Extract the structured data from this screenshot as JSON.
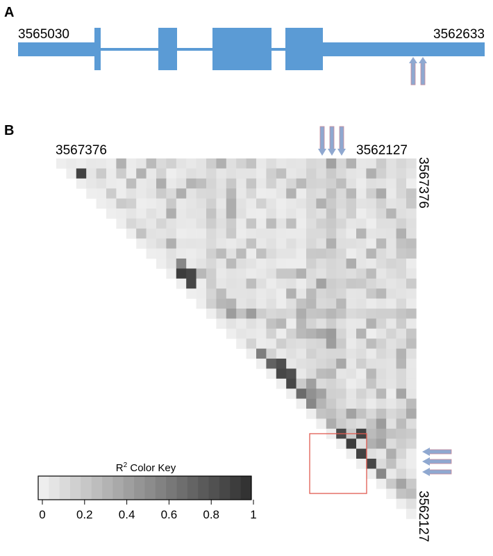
{
  "chart_data": [
    {
      "panel": "A",
      "type": "gene-structure",
      "start_label": "3565030",
      "end_label": "3562633",
      "exons": 5,
      "color": "#5b9bd5",
      "marker_arrows": 2
    },
    {
      "panel": "B",
      "type": "heatmap",
      "top_left_label": "3567376",
      "top_right_label": "3562127",
      "right_top_label": "3567376",
      "right_bottom_label": "3562127",
      "n_snps": 36,
      "color_key": {
        "title_prefix": "R",
        "title_sup": "2",
        "title_suffix": " Color Key",
        "ticks": [
          "0",
          "0.2",
          "0.4",
          "0.6",
          "0.8",
          "1"
        ],
        "range": [
          0,
          1
        ],
        "low_color": "#eeeeee",
        "high_color": "#333333"
      },
      "highlight_box_color": "#e05a50",
      "arrow_color": "#8fa8d0",
      "arrow_stripe_color": "#c88a9a",
      "top_arrows": 3,
      "right_arrows": 3
    }
  ]
}
